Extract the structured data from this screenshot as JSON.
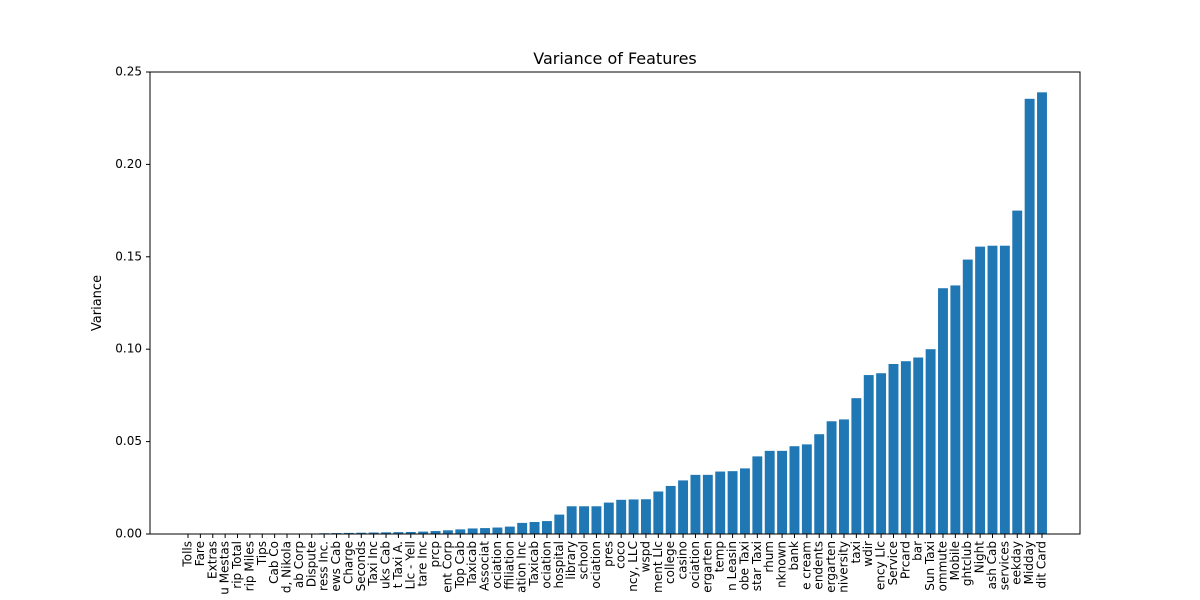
{
  "chart_data": {
    "type": "bar",
    "title": "Variance of Features",
    "xlabel": "",
    "ylabel": "Variance",
    "ylim": [
      0,
      0.25
    ],
    "yticks": [
      "0.00",
      "0.05",
      "0.10",
      "0.15",
      "0.20",
      "0.25"
    ],
    "grid": false,
    "bar_color": "#1f77b4",
    "categories": [
      "Tolls",
      "Fare",
      "Extras",
      "u Mestas",
      "rip Total",
      "rip Miles",
      "Tips",
      "Cab Co",
      "d, Nikola",
      "ab Corp",
      "Dispute",
      "ress Inc.",
      "ews Cab",
      "Charge",
      "Seconds",
      "Taxi Inc",
      "uks Cab",
      "t Taxi A.",
      "Llc - Yell",
      "tare Inc",
      "prcp",
      "ent Corp",
      "Top Cab",
      "Taxicab",
      "Associat",
      "ociation",
      "ffiliation",
      "ation Inc",
      "Taxicab",
      "ociation",
      "hospital",
      "library",
      "school",
      "ociation",
      "pres",
      "coco",
      "ncy, LLC",
      "wspd",
      "ment Llc",
      "college",
      "casino",
      "ociation",
      "ergarten",
      "temp",
      "n Leasin",
      "obe Taxi",
      "star Taxi",
      "rhum",
      "nknown",
      "bank",
      "e cream",
      "endents",
      "ergarten",
      "niversity",
      "taxi",
      "wdir",
      "ency Llc",
      "Service",
      "Prcard",
      "bar",
      "Sun Taxi",
      "ommute",
      "Mobile",
      "ghtclub",
      "Night",
      "ash Cab",
      "services",
      "eekday",
      "Midday",
      "dit Card"
    ],
    "values": [
      0.0,
      0.0,
      0.0,
      0.0,
      0.0,
      0.0,
      0.0,
      0.0,
      0.0,
      0.0,
      0.0002,
      0.0004,
      0.0005,
      0.0006,
      0.0007,
      0.0008,
      0.0009,
      0.001,
      0.0011,
      0.0013,
      0.0016,
      0.002,
      0.0025,
      0.003,
      0.0032,
      0.0035,
      0.004,
      0.006,
      0.0065,
      0.007,
      0.0105,
      0.015,
      0.015,
      0.015,
      0.017,
      0.0185,
      0.0187,
      0.0188,
      0.023,
      0.026,
      0.029,
      0.032,
      0.032,
      0.0338,
      0.034,
      0.0355,
      0.042,
      0.045,
      0.045,
      0.0475,
      0.0485,
      0.054,
      0.061,
      0.062,
      0.0735,
      0.086,
      0.087,
      0.092,
      0.0935,
      0.0955,
      0.1,
      0.133,
      0.1345,
      0.1485,
      0.1555,
      0.156,
      0.156,
      0.175,
      0.2355,
      0.239
    ]
  }
}
